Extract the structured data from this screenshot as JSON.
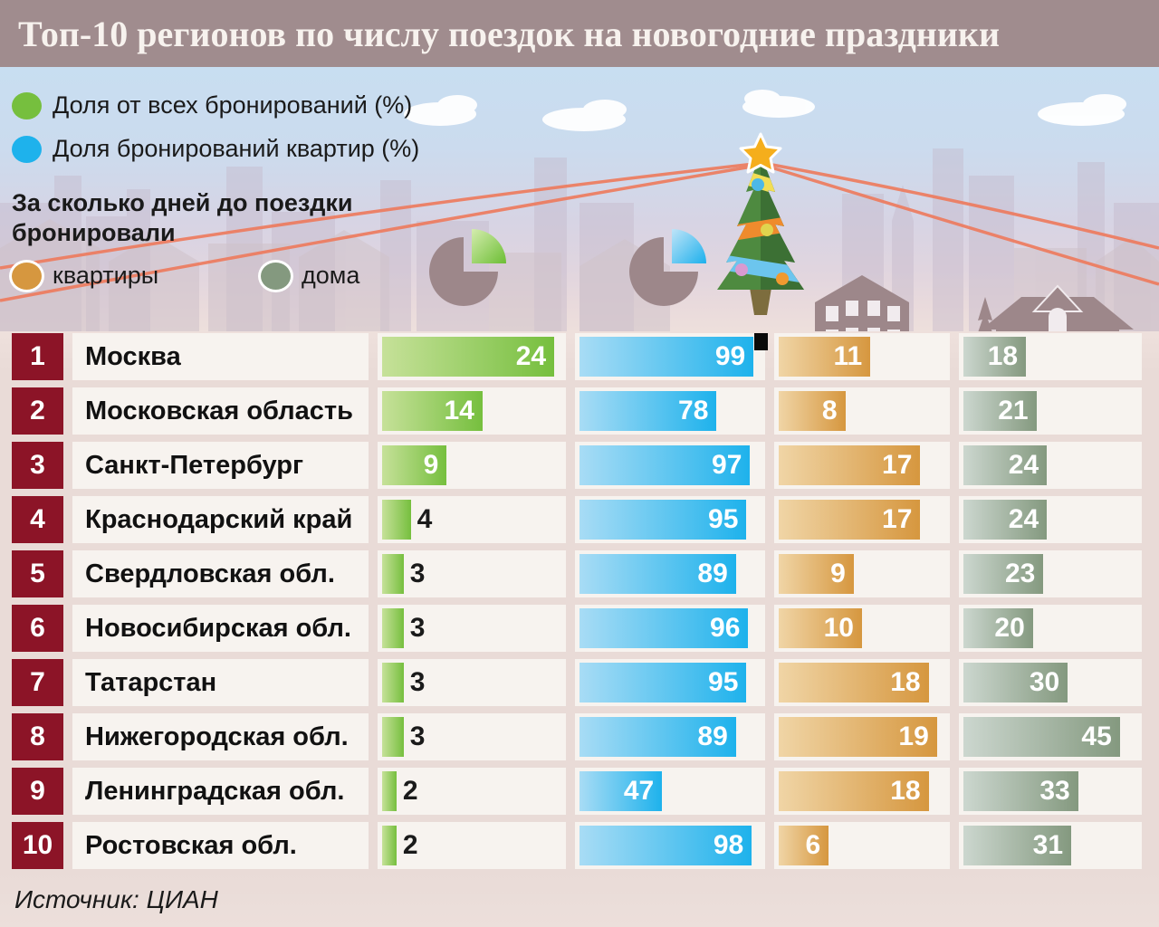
{
  "title": "Топ-10 регионов по числу поездок на новогодние праздники",
  "legend": {
    "share_all": {
      "label": "Доля от всех бронирований (%)",
      "color": "#76bf3e",
      "color_light": "#c6e199"
    },
    "share_flats": {
      "label": "Доля бронирований квартир (%)",
      "color": "#1eb2ec",
      "color_light": "#a8dcf5"
    }
  },
  "days_block": {
    "title_line1": "За сколько дней до поездки",
    "title_line2": "бронировали",
    "flats": {
      "label": "квартиры",
      "color": "#d6973f",
      "color_light": "#f0d5a6"
    },
    "houses": {
      "label": "дома",
      "color": "#84997f",
      "color_light": "#ccd7cf"
    }
  },
  "source": "Источник: ЦИАН",
  "colors": {
    "header_bg": "#a08c8e",
    "rank_bg": "#8c1427",
    "cell_bg": "#f7f3ef",
    "background_top": "#c8def1",
    "background_bottom": "#e9dbd7",
    "silhouette": "#9d878a",
    "garland_string": "#ee7a5c"
  },
  "chart_data": {
    "type": "bar",
    "title": "Топ-10 регионов по числу поездок на новогодние праздники",
    "categories": [
      "Москва",
      "Московская область",
      "Санкт-Петербург",
      "Краснодарский край",
      "Свердловская обл.",
      "Новосибирская обл.",
      "Татарстан",
      "Нижегородская обл.",
      "Ленинградская обл.",
      "Ростовская обл."
    ],
    "ranks": [
      1,
      2,
      3,
      4,
      5,
      6,
      7,
      8,
      9,
      10
    ],
    "legend_position": "top-left",
    "grid": false,
    "series": [
      {
        "key": "share_all",
        "name": "Доля от всех бронирований (%)",
        "color": "#76bf3e",
        "color_light": "#c6e199",
        "axis_max": 25,
        "values": [
          24,
          14,
          9,
          4,
          3,
          3,
          3,
          3,
          2,
          2
        ]
      },
      {
        "key": "share_flats",
        "name": "Доля бронирований квартир (%)",
        "color": "#1eb2ec",
        "color_light": "#a8dcf5",
        "axis_max": 103,
        "values": [
          99,
          78,
          97,
          95,
          89,
          96,
          95,
          89,
          47,
          98
        ]
      },
      {
        "key": "days_flats",
        "name": "За сколько дней до поездки бронировали — квартиры",
        "color": "#d6973f",
        "color_light": "#f0d5a6",
        "axis_max": 20,
        "values": [
          11,
          8,
          17,
          17,
          9,
          10,
          18,
          19,
          18,
          6
        ]
      },
      {
        "key": "days_houses",
        "name": "За сколько дней до поездки бронировали — дома",
        "color": "#84997f",
        "color_light": "#ccd7cf",
        "axis_max": 50,
        "values": [
          18,
          21,
          24,
          24,
          23,
          20,
          30,
          45,
          33,
          31
        ]
      }
    ]
  }
}
